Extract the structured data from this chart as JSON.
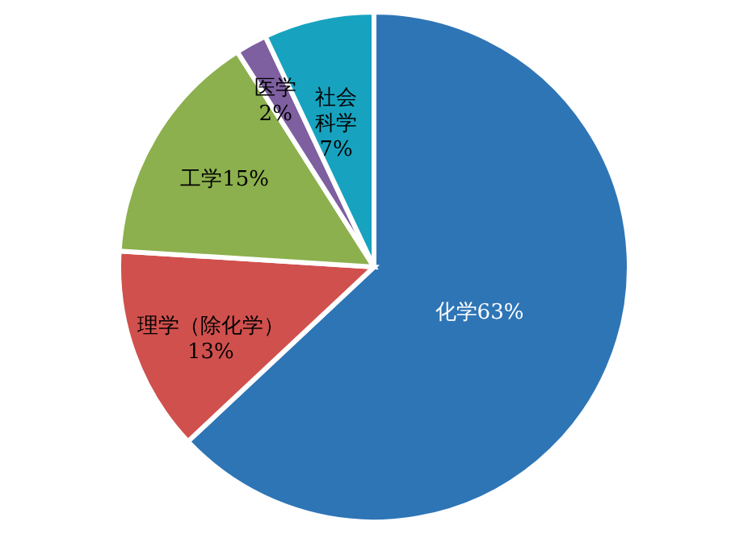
{
  "chart_data": {
    "type": "pie",
    "categories": [
      "化学",
      "理学（除化学）",
      "工学",
      "医学",
      "社会科学"
    ],
    "values": [
      63,
      13,
      15,
      2,
      7
    ],
    "colors": [
      "#2e75b6",
      "#d0504d",
      "#8cb04d",
      "#7e5fa0",
      "#17a3bf"
    ],
    "value_labels": [
      "63%",
      "13%",
      "15%",
      "2%",
      "7%"
    ]
  }
}
